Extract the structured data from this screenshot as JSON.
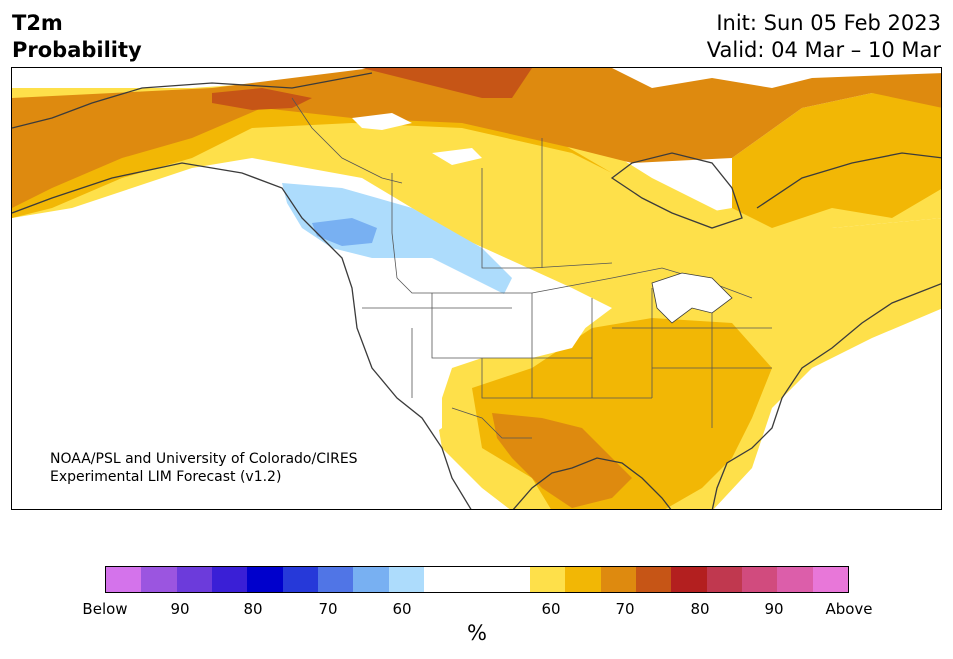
{
  "header": {
    "variable": "T2m",
    "product": "Probability",
    "init": "Init: Sun 05 Feb 2023",
    "valid": "Valid: 04 Mar – 10 Mar"
  },
  "credit": {
    "line1": "NOAA/PSL and University of Colorado/CIRES",
    "line2": "Experimental LIM Forecast (v1.2)"
  },
  "colorbar": {
    "unit": "%",
    "colors": [
      "#d473eb",
      "#9b55e0",
      "#6c3bdb",
      "#3a1fd6",
      "#0000cc",
      "#2639d9",
      "#5075e6",
      "#78b0f2",
      "#addcfc",
      "#ffffff",
      "#fee04a",
      "#f2b705",
      "#de8a0f",
      "#c65516",
      "#b31f1f",
      "#c0384f",
      "#d14b7e",
      "#dc5eaa",
      "#e877d9"
    ],
    "labels": [
      "Below",
      "90",
      "80",
      "70",
      "60",
      "60",
      "70",
      "80",
      "90",
      "Above"
    ]
  },
  "map": {
    "ocean_color": "#ffffff",
    "land_neutral_color": "#ffffff",
    "coastline_color": "#3b3b3b"
  }
}
